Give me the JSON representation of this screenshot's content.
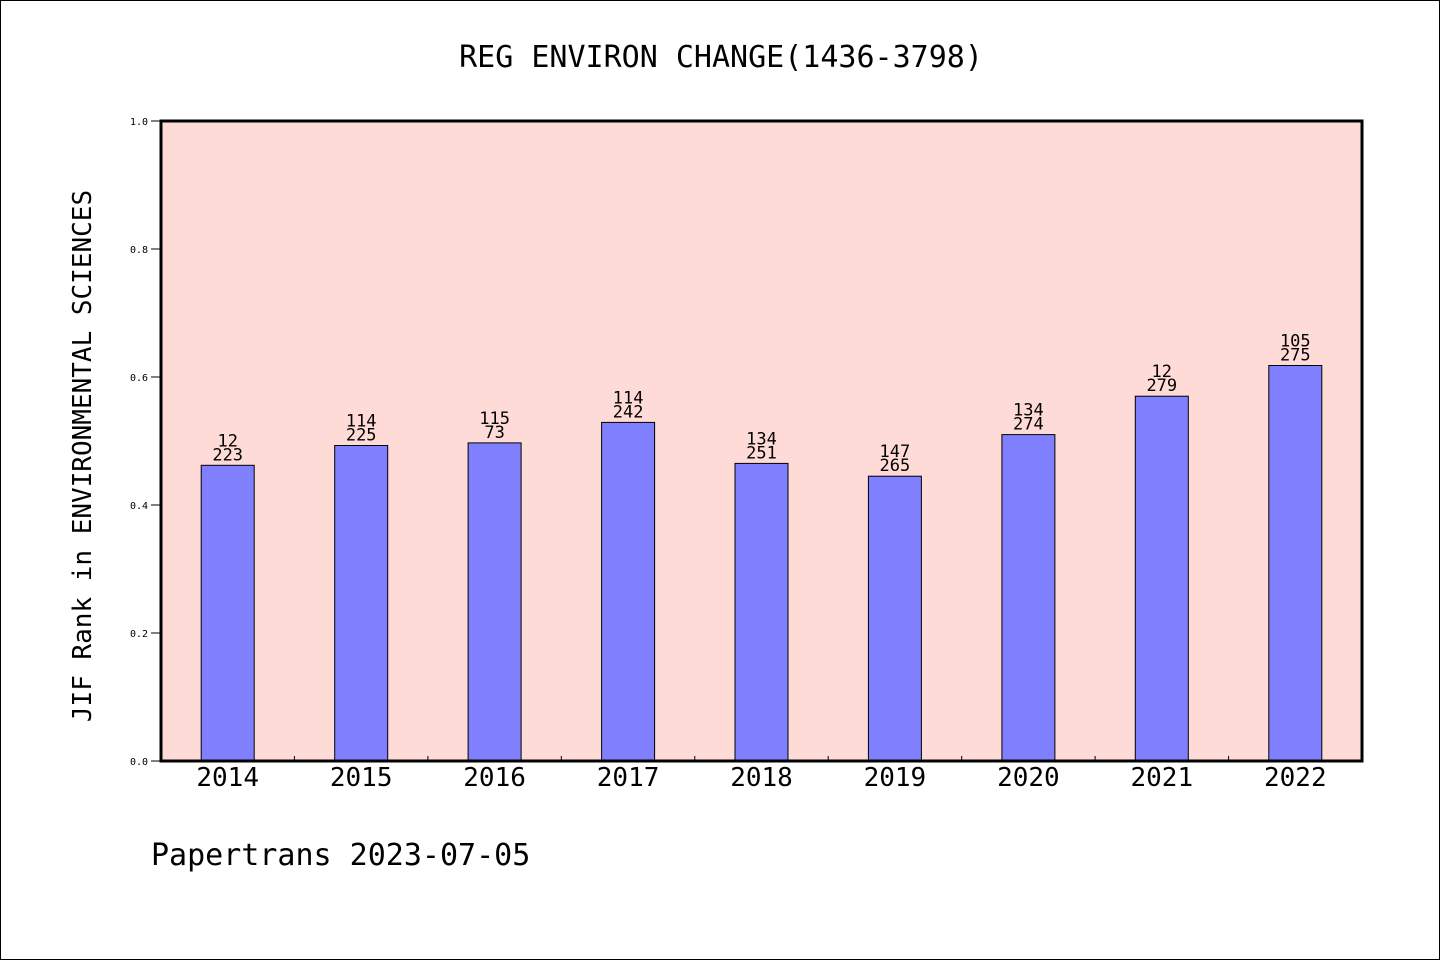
{
  "colors": {
    "plot_background": "#ffdbd8",
    "bar_fill": "#8080ff",
    "bar_stroke": "#000000",
    "axis": "#000000"
  },
  "chart_data": {
    "type": "bar",
    "title": "REG ENVIRON CHANGE(1436-3798)",
    "xlabel": "",
    "ylabel": "JIF Rank in ENVIRONMENTAL SCIENCES",
    "ylim": [
      0,
      1.0
    ],
    "yticks": [
      "0.0",
      "0.2",
      "0.4",
      "0.6",
      "0.8",
      "1.0"
    ],
    "grid": false,
    "categories": [
      "2014",
      "2015",
      "2016",
      "2017",
      "2018",
      "2019",
      "2020",
      "2021",
      "2022"
    ],
    "values": [
      0.462,
      0.493,
      0.497,
      0.529,
      0.465,
      0.445,
      0.51,
      0.57,
      0.618
    ],
    "label_top": [
      "12",
      "114",
      "115",
      "114",
      "134",
      "147",
      "134",
      "12",
      "105"
    ],
    "label_bottom": [
      "223",
      "225",
      "73",
      "242",
      "251",
      "265",
      "274",
      "279",
      "275"
    ]
  },
  "footer": {
    "text": "Papertrans 2023-07-05"
  }
}
